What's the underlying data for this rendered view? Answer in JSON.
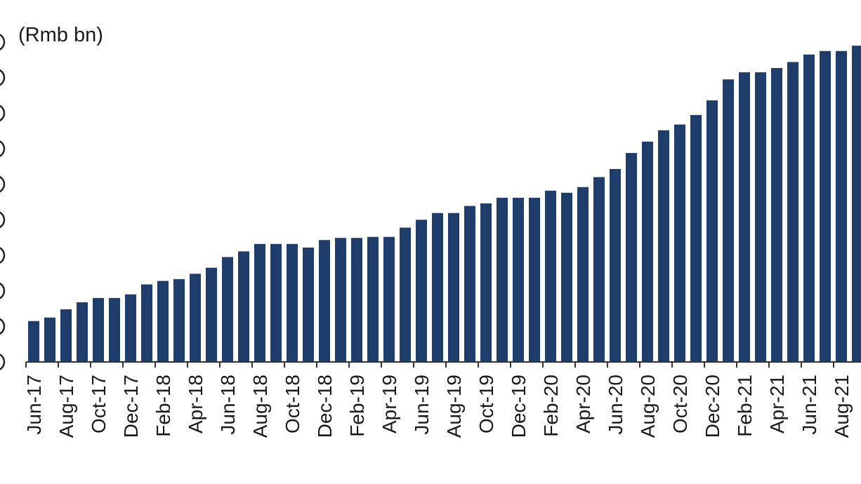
{
  "chart_data": {
    "type": "bar",
    "unit_label": "(Rmb bn)",
    "bar_color": "#1f3d6b",
    "axis_color": "#333333",
    "categories": [
      "Jun-17",
      "Jul-17",
      "Aug-17",
      "Sep-17",
      "Oct-17",
      "Nov-17",
      "Dec-17",
      "Jan-18",
      "Feb-18",
      "Mar-18",
      "Apr-18",
      "May-18",
      "Jun-18",
      "Jul-18",
      "Aug-18",
      "Sep-18",
      "Oct-18",
      "Nov-18",
      "Dec-18",
      "Jan-19",
      "Feb-19",
      "Mar-19",
      "Apr-19",
      "May-19",
      "Jun-19",
      "Jul-19",
      "Aug-19",
      "Sep-19",
      "Oct-19",
      "Nov-19",
      "Dec-19",
      "Jan-20",
      "Feb-20",
      "Mar-20",
      "Apr-20",
      "May-20",
      "Jun-20",
      "Jul-20",
      "Aug-20",
      "Sep-20",
      "Oct-20",
      "Nov-20",
      "Dec-20",
      "Jan-21",
      "Feb-21",
      "Mar-21",
      "Apr-21",
      "May-21",
      "Jun-21",
      "Jul-21",
      "Aug-21",
      "Sep-21"
    ],
    "shown_tick_labels": [
      "Jun-17",
      "Aug-17",
      "Oct-17",
      "Dec-17",
      "Feb-18",
      "Apr-18",
      "Jun-18",
      "Aug-18",
      "Oct-18",
      "Dec-18",
      "Feb-19",
      "Apr-19",
      "Jun-19",
      "Aug-19",
      "Oct-19",
      "Dec-19",
      "Feb-20",
      "Apr-20",
      "Jun-20",
      "Aug-20",
      "Oct-20",
      "Dec-20",
      "Feb-21",
      "Apr-21",
      "Jun-21",
      "Aug-21"
    ],
    "values": [
      115,
      125,
      148,
      168,
      180,
      180,
      190,
      218,
      228,
      233,
      248,
      265,
      295,
      311,
      332,
      332,
      332,
      322,
      343,
      349,
      349,
      352,
      352,
      378,
      400,
      419,
      419,
      439,
      446,
      462,
      462,
      462,
      482,
      476,
      492,
      520,
      543,
      588,
      620,
      652,
      668,
      695,
      736,
      795,
      815,
      815,
      827,
      844,
      865,
      875,
      875,
      890
    ],
    "ylim": [
      0,
      900
    ],
    "grid": false
  }
}
